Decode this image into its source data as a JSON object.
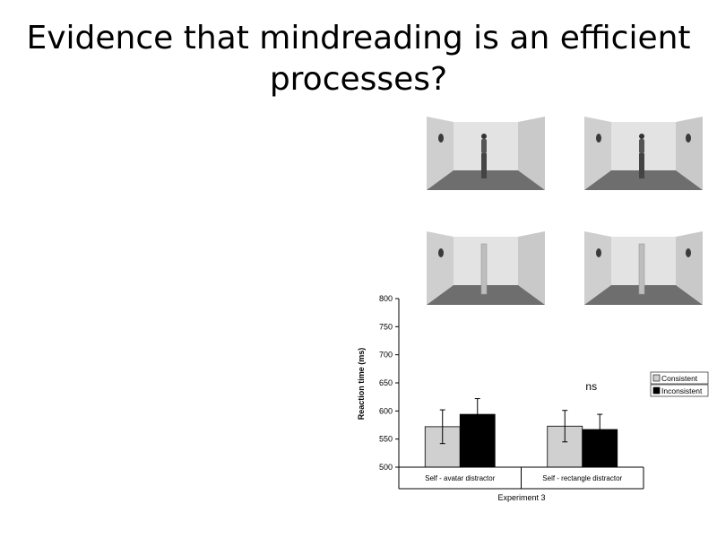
{
  "slide": {
    "title_line1": "Evidence that mindreading is an efficient",
    "title_line2": "processes?"
  },
  "stimuli": [
    {
      "name": "room-avatar-left",
      "content": "avatar",
      "dot_walls": "left"
    },
    {
      "name": "room-avatar-both",
      "content": "avatar",
      "dot_walls": "both"
    },
    {
      "name": "room-rectangle-left",
      "content": "rectangle",
      "dot_walls": "left"
    },
    {
      "name": "room-rectangle-both",
      "content": "rectangle",
      "dot_walls": "both"
    }
  ],
  "chart_data": {
    "type": "bar",
    "categories": [
      "Self - avatar distractor",
      "Self - rectangle distractor"
    ],
    "xlabel": "Experiment 3",
    "ylabel": "Reaction time (ms)",
    "ylim": [
      500,
      800
    ],
    "yticks": [
      500,
      550,
      600,
      650,
      700,
      750,
      800
    ],
    "series": [
      {
        "name": "Consistent",
        "color": "#d0d0d0",
        "values": [
          572,
          573
        ],
        "errors": [
          30,
          28
        ]
      },
      {
        "name": "Inconsistent",
        "color": "#000000",
        "values": [
          594,
          567
        ],
        "errors": [
          28,
          27
        ]
      }
    ],
    "annotations": [
      {
        "text": "ns",
        "category": 1
      }
    ],
    "legend_position": "right",
    "grid": false
  }
}
